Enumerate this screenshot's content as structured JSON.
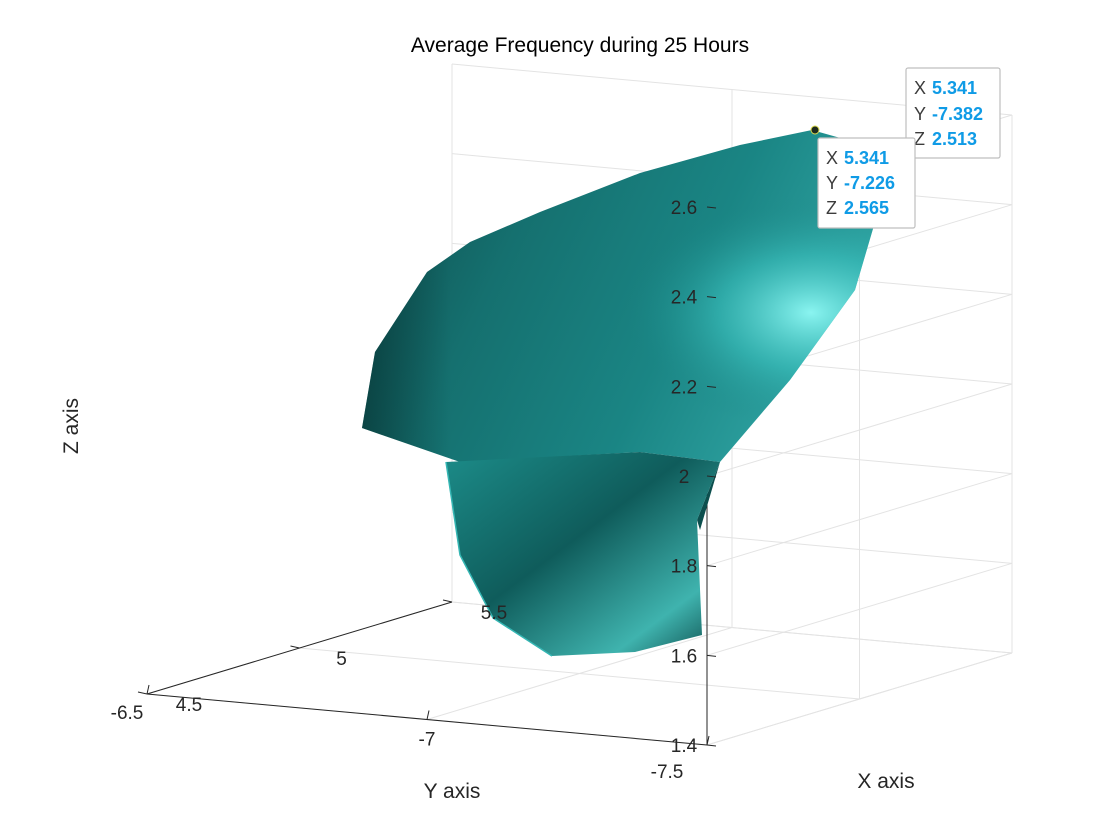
{
  "chart_data": {
    "type": "surface",
    "title": "Average Frequency during 25 Hours",
    "xlabel": "X axis",
    "ylabel": "Y axis",
    "zlabel": "Z axis",
    "xlim": [
      4.5,
      5.5
    ],
    "ylim": [
      -7.5,
      -6.5
    ],
    "zlim": [
      1.4,
      2.6
    ],
    "x_ticks": [
      "4.5",
      "5",
      "5.5"
    ],
    "y_ticks": [
      "-6.5",
      "-7",
      "-7.5"
    ],
    "z_ticks": [
      "1.4",
      "1.6",
      "1.8",
      "2",
      "2.2",
      "2.4",
      "2.6"
    ],
    "grid": true,
    "surface_color": "#1f8a8a",
    "surface_highlight": "#7ef7f2",
    "surface_shadow": "#0a3838",
    "datatips": [
      {
        "x_key": "X",
        "x": "5.341",
        "y_key": "Y",
        "y": "-7.382",
        "z_key": "Z",
        "z": "2.513"
      },
      {
        "x_key": "X",
        "x": "5.341",
        "y_key": "Y",
        "y": "-7.226",
        "z_key": "Z",
        "z": "2.565"
      }
    ]
  }
}
